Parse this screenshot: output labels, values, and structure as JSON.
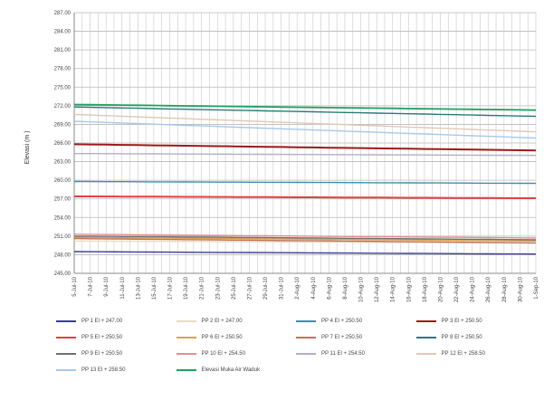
{
  "chart_data": {
    "type": "line",
    "title": "",
    "xlabel": "",
    "ylabel": "Elevasi (m )",
    "ylim": [
      245.0,
      287.0
    ],
    "yticks": [
      "245.00",
      "248.00",
      "251.00",
      "254.00",
      "257.00",
      "260.00",
      "263.00",
      "266.00",
      "269.00",
      "272.00",
      "275.00",
      "278.00",
      "281.00",
      "284.00",
      "287.00"
    ],
    "categories": [
      "5-Jul-10",
      "7-Jul-10",
      "9-Jul-10",
      "11-Jul-10",
      "13-Jul-10",
      "15-Jul-10",
      "17-Jul-10",
      "19-Jul-10",
      "21-Jul-10",
      "23-Jul-10",
      "25-Jul-10",
      "27-Jul-10",
      "29-Jul-10",
      "31-Jul-10",
      "2-Aug-10",
      "4-Aug-10",
      "6-Aug-10",
      "8-Aug-10",
      "10-Aug-10",
      "12-Aug-10",
      "14-Aug-10",
      "16-Aug-10",
      "18-Aug-10",
      "20-Aug-10",
      "22-Aug-10",
      "24-Aug-10",
      "26-Aug-10",
      "28-Aug-10",
      "30-Aug-10",
      "1-Sep-10"
    ],
    "grid": true,
    "legend_position": "bottom",
    "series": [
      {
        "name": "PP 1 El + 247.00",
        "color": "#3a3a9a",
        "start": 248.5,
        "end": 248.1
      },
      {
        "name": "PP 2 El + 247.00",
        "color": "#e8dcc0",
        "start": 250.2,
        "end": 249.9
      },
      {
        "name": "PP 4 El + 250.50",
        "color": "#3a8fa8",
        "start": 259.8,
        "end": 259.5
      },
      {
        "name": "PP 3 El + 250.50",
        "color": "#9a1a1a",
        "start": 265.8,
        "end": 264.8
      },
      {
        "name": "PP 5 El + 250.50",
        "color": "#e04040",
        "start": 257.4,
        "end": 257.1
      },
      {
        "name": "PP 6 El + 250.50",
        "color": "#e0a050",
        "start": 250.8,
        "end": 250.2
      },
      {
        "name": "PP 7 El + 250.50",
        "color": "#c07058",
        "start": 250.6,
        "end": 249.9
      },
      {
        "name": "PP 8 El + 250.50",
        "color": "#2a7a7a",
        "start": 271.8,
        "end": 270.3
      },
      {
        "name": "PP 9 El + 250.50",
        "color": "#707070",
        "start": 251.0,
        "end": 250.4
      },
      {
        "name": "PP 10 El + 254.50",
        "color": "#e09090",
        "start": 251.3,
        "end": 250.7
      },
      {
        "name": "PP 11 El + 254.50",
        "color": "#b0b0c8",
        "start": 264.3,
        "end": 264.0
      },
      {
        "name": "PP 12 El + 258.50",
        "color": "#e0c8b8",
        "start": 270.6,
        "end": 267.8
      },
      {
        "name": "PP 13 El + 258.50",
        "color": "#a8c8e8",
        "start": 269.5,
        "end": 266.8
      },
      {
        "name": "Elevasi Muka Air Waduk",
        "color": "#20a060",
        "start": 272.2,
        "end": 271.3
      }
    ]
  }
}
